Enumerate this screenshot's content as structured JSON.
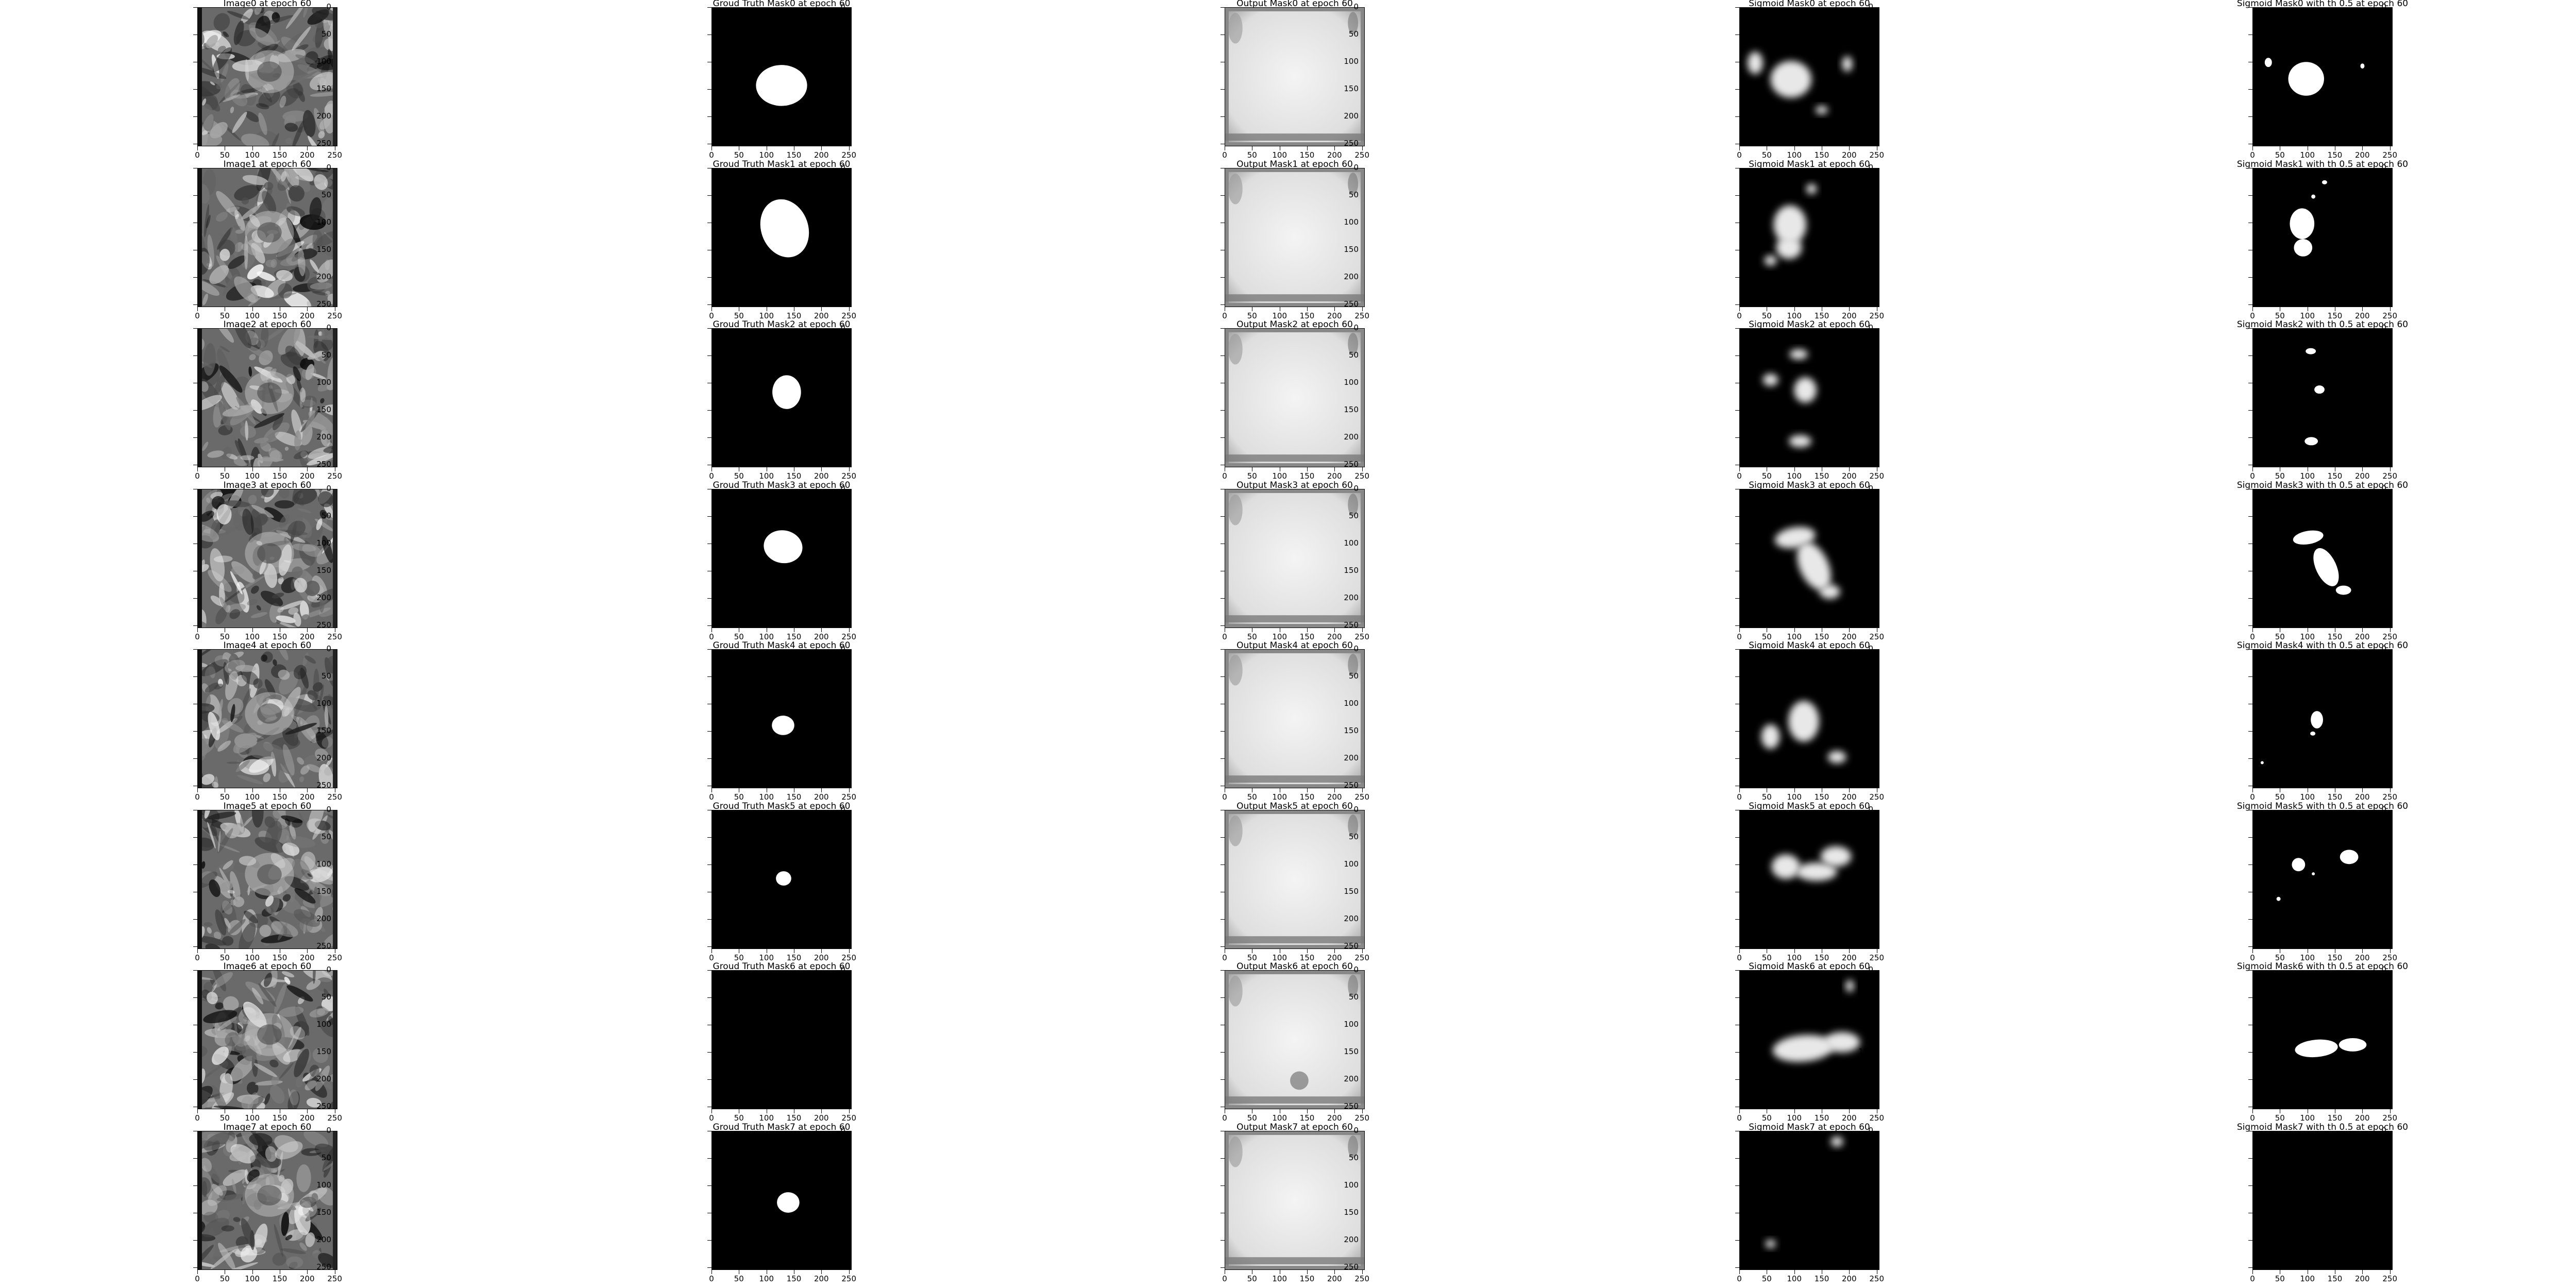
{
  "figure": {
    "columns": [
      "image",
      "ground_truth",
      "output",
      "sigmoid",
      "threshold"
    ],
    "x_ticks": [
      "0",
      "50",
      "100",
      "150",
      "200",
      "250"
    ],
    "y_ticks": [
      "0",
      "50",
      "100",
      "150",
      "200",
      "250"
    ],
    "x_tick_values": [
      0,
      50,
      100,
      150,
      200,
      250
    ],
    "y_tick_values": [
      0,
      50,
      100,
      150,
      200,
      250
    ],
    "axis_extent": [
      0,
      255
    ],
    "rows": [
      {
        "titles": [
          "Image0 at epoch 60",
          "Groud Truth Mask0 at epoch 60",
          "Output Mask0 at epoch 60",
          "Sigmoid Mask0 at epoch 60",
          "Sigmoid Mask0 with th 0.5 at epoch 60"
        ],
        "image": "prostate MRI slice",
        "ground_truth": "white blob",
        "output": "light gray mask",
        "sigmoid": "gray heatmap",
        "threshold": "white blob"
      },
      {
        "titles": [
          "Image1 at epoch 60",
          "Groud Truth Mask1 at epoch 60",
          "Output Mask1 at epoch 60",
          "Sigmoid Mask1 at epoch 60",
          "Sigmoid Mask1 with th 0.5 at epoch 60"
        ],
        "image": "prostate MRI slice",
        "ground_truth": "white blob",
        "output": "light gray mask",
        "sigmoid": "gray heatmap",
        "threshold": "white blob"
      },
      {
        "titles": [
          "Image2 at epoch 60",
          "Groud Truth Mask2 at epoch 60",
          "Output Mask2 at epoch 60",
          "Sigmoid Mask2 at epoch 60",
          "Sigmoid Mask2 with th 0.5 at epoch 60"
        ],
        "image": "prostate MRI slice",
        "ground_truth": "white blob",
        "output": "light gray mask",
        "sigmoid": "gray heatmap",
        "threshold": "small white specks"
      },
      {
        "titles": [
          "Image3 at epoch 60",
          "Groud Truth Mask3 at epoch 60",
          "Output Mask3 at epoch 60",
          "Sigmoid Mask3 at epoch 60",
          "Sigmoid Mask3 with th 0.5 at epoch 60"
        ],
        "image": "prostate MRI slice",
        "ground_truth": "white blob",
        "output": "light gray mask",
        "sigmoid": "gray heatmap",
        "threshold": "white irregular region"
      },
      {
        "titles": [
          "Image4 at epoch 60",
          "Groud Truth Mask4 at epoch 60",
          "Output Mask4 at epoch 60",
          "Sigmoid Mask4 at epoch 60",
          "Sigmoid Mask4 with th 0.5 at epoch 60"
        ],
        "image": "prostate MRI slice",
        "ground_truth": "white blob",
        "output": "light gray mask",
        "sigmoid": "gray heatmap",
        "threshold": "small white specks"
      },
      {
        "titles": [
          "Image5 at epoch 60",
          "Groud Truth Mask5 at epoch 60",
          "Output Mask5 at epoch 60",
          "Sigmoid Mask5 at epoch 60",
          "Sigmoid Mask5 with th 0.5 at epoch 60"
        ],
        "image": "prostate MRI slice",
        "ground_truth": "small white blob",
        "output": "light gray mask",
        "sigmoid": "gray heatmap",
        "threshold": "white blobs"
      },
      {
        "titles": [
          "Image6 at epoch 60",
          "Groud Truth Mask6 at epoch 60",
          "Output Mask6 at epoch 60",
          "Sigmoid Mask6 at epoch 60",
          "Sigmoid Mask6 with th 0.5 at epoch 60"
        ],
        "image": "prostate MRI slice",
        "ground_truth": "empty",
        "output": "light gray mask",
        "sigmoid": "gray heatmap",
        "threshold": "white horizontal band"
      },
      {
        "titles": [
          "Image7 at epoch 60",
          "Groud Truth Mask7 at epoch 60",
          "Output Mask7 at epoch 60",
          "Sigmoid Mask7 at epoch 60",
          "Sigmoid Mask7 with th 0.5 at epoch 60"
        ],
        "image": "prostate MRI slice",
        "ground_truth": "small white blob",
        "output": "light gray mask",
        "sigmoid": "faint dark heatmap",
        "threshold": "empty"
      }
    ]
  }
}
